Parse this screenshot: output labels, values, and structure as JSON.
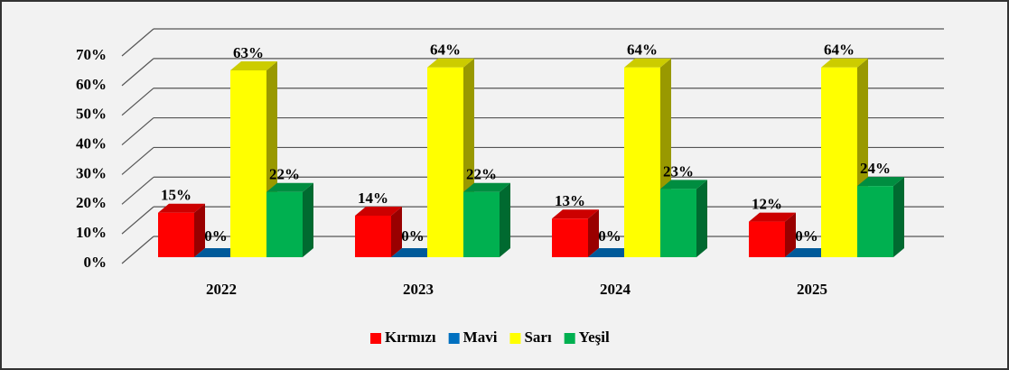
{
  "chart_data": {
    "type": "bar3d",
    "categories": [
      "2022",
      "2023",
      "2024",
      "2025"
    ],
    "series": [
      {
        "name": "Kırmızı",
        "color": "#ff0000",
        "values": [
          15,
          14,
          13,
          12
        ],
        "value_labels": [
          "15%",
          "14%",
          "13%",
          "12%"
        ]
      },
      {
        "name": "Mavi",
        "color": "#0070c0",
        "values": [
          0,
          0,
          0,
          0
        ],
        "value_labels": [
          "0%",
          "0%",
          "0%",
          "0%"
        ]
      },
      {
        "name": "Sarı",
        "color": "#ffff00",
        "values": [
          63,
          64,
          64,
          64
        ],
        "value_labels": [
          "63%",
          "64%",
          "64%",
          "64%"
        ]
      },
      {
        "name": "Yeşil",
        "color": "#00b050",
        "values": [
          22,
          22,
          23,
          24
        ],
        "value_labels": [
          "22%",
          "22%",
          "23%",
          "24%"
        ]
      }
    ],
    "ylim": [
      0,
      70
    ],
    "yticks": [
      {
        "value": 0,
        "label": "0%"
      },
      {
        "value": 10,
        "label": "10%"
      },
      {
        "value": 20,
        "label": "20%"
      },
      {
        "value": 30,
        "label": "30%"
      },
      {
        "value": 40,
        "label": "40%"
      },
      {
        "value": 50,
        "label": "50%"
      },
      {
        "value": 60,
        "label": "60%"
      },
      {
        "value": 70,
        "label": "70%"
      }
    ],
    "grid": true,
    "legend": "bottom"
  }
}
